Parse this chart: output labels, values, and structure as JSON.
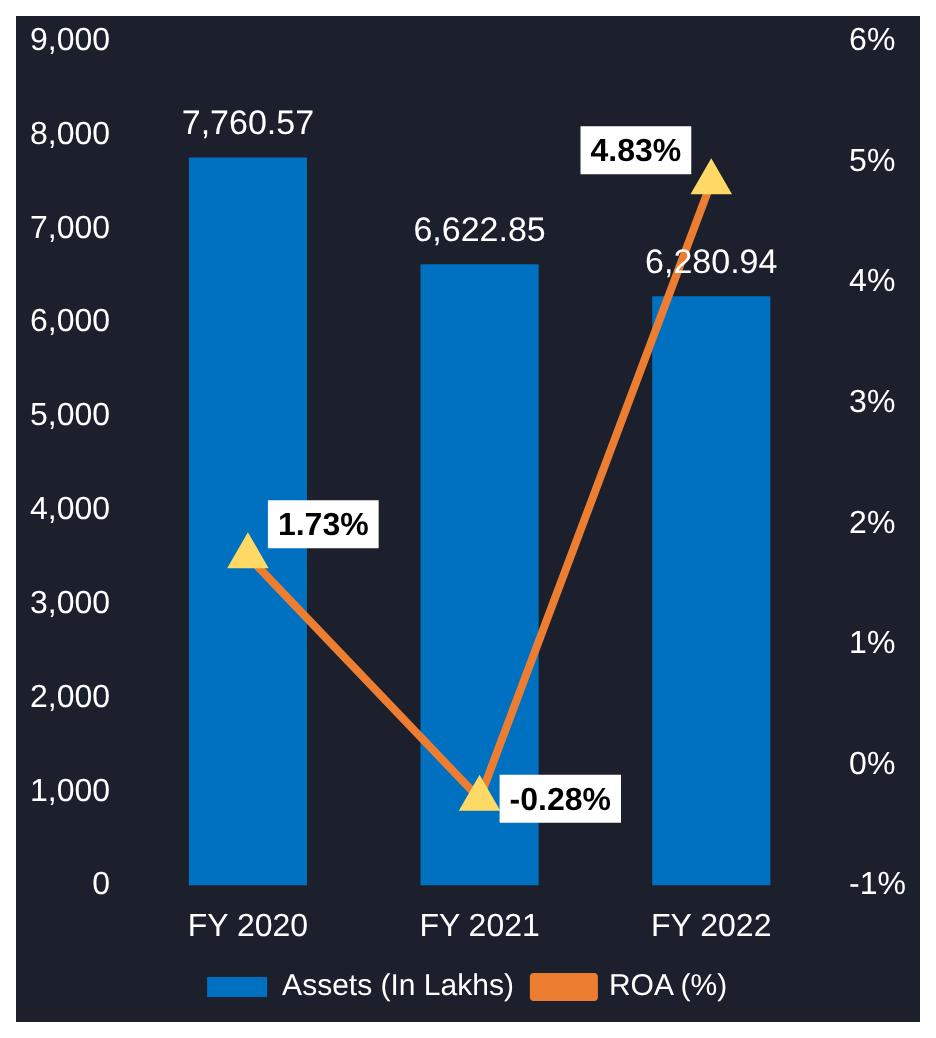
{
  "chart_data": {
    "type": "bar",
    "categories": [
      "FY 2020",
      "FY 2021",
      "FY 2022"
    ],
    "series": [
      {
        "name": "Assets (In Lakhs)",
        "color": "#0070c0",
        "values": [
          7760.57,
          6622.85,
          6280.94
        ],
        "value_labels": [
          "7,760.57",
          "6,622.85",
          "6,280.94"
        ]
      },
      {
        "name": "ROA (%)",
        "type": "line",
        "axis": "y2",
        "color": "#ed7d31",
        "values": [
          1.73,
          -0.28,
          4.83
        ],
        "value_labels": [
          "1.73%",
          "-0.28%",
          "4.83%"
        ]
      }
    ],
    "ylim": [
      0,
      9000
    ],
    "yticks": [
      0,
      {
        "value": 1000,
        "label": "1,000"
      },
      {
        "value": 2000,
        "label": "2,000"
      },
      {
        "value": 3000,
        "label": "3,000"
      },
      {
        "value": 4000,
        "label": "4,000"
      },
      {
        "value": 5000,
        "label": "5,000"
      },
      {
        "value": 6000,
        "label": "6,000"
      },
      {
        "value": 7000,
        "label": "7,000"
      },
      {
        "value": 8000,
        "label": "8,000"
      },
      {
        "value": 9000,
        "label": "9,000"
      }
    ],
    "y2lim": [
      -1,
      6
    ],
    "y2ticks": [
      {
        "value": -1,
        "label": "-1%"
      },
      {
        "value": 0,
        "label": "0%"
      },
      {
        "value": 1,
        "label": "1%"
      },
      {
        "value": 2,
        "label": "2%"
      },
      {
        "value": 3,
        "label": "3%"
      },
      {
        "value": 4,
        "label": "4%"
      },
      {
        "value": 5,
        "label": "5%"
      },
      {
        "value": 6,
        "label": "6%"
      }
    ],
    "marker": "triangle",
    "legend": "bottom",
    "grid": false
  }
}
